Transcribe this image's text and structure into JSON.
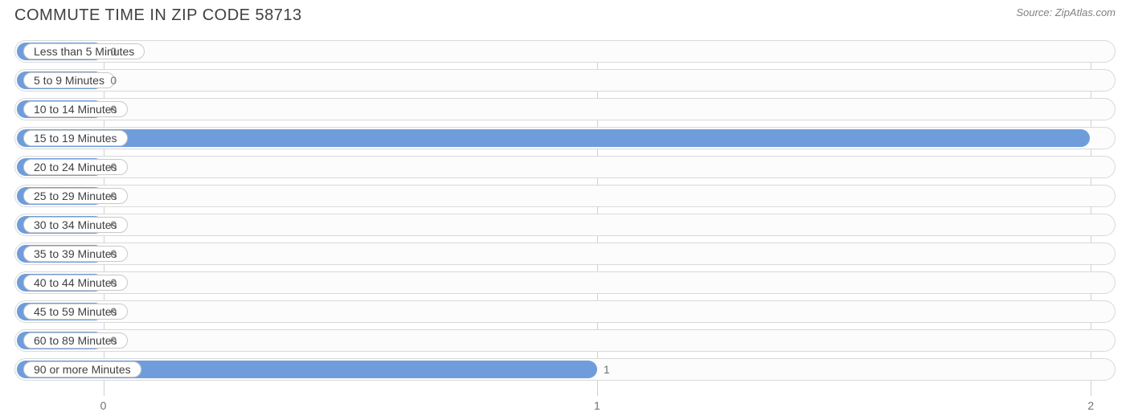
{
  "title": "COMMUTE TIME IN ZIP CODE 58713",
  "source": "Source: ZipAtlas.com",
  "chart": {
    "type": "bar-horizontal",
    "xmin": -0.18,
    "xmax": 2.05,
    "ticks": [
      0,
      1,
      2
    ],
    "bar_color": "#6f9ddb",
    "track_border_color": "#d9d9d9",
    "track_bg": "#fcfcfc",
    "pill_bg": "#ffffff",
    "pill_border": "#c9c9c9",
    "grid_color": "#d0d0d0",
    "value_color_outside": "#707070",
    "value_color_inside": "#ffffff",
    "label_color": "#404040",
    "rows": [
      {
        "label": "Less than 5 Minutes",
        "value": 0
      },
      {
        "label": "5 to 9 Minutes",
        "value": 0
      },
      {
        "label": "10 to 14 Minutes",
        "value": 0
      },
      {
        "label": "15 to 19 Minutes",
        "value": 2
      },
      {
        "label": "20 to 24 Minutes",
        "value": 0
      },
      {
        "label": "25 to 29 Minutes",
        "value": 0
      },
      {
        "label": "30 to 34 Minutes",
        "value": 0
      },
      {
        "label": "35 to 39 Minutes",
        "value": 0
      },
      {
        "label": "40 to 44 Minutes",
        "value": 0
      },
      {
        "label": "45 to 59 Minutes",
        "value": 0
      },
      {
        "label": "60 to 89 Minutes",
        "value": 0
      },
      {
        "label": "90 or more Minutes",
        "value": 1
      }
    ]
  }
}
